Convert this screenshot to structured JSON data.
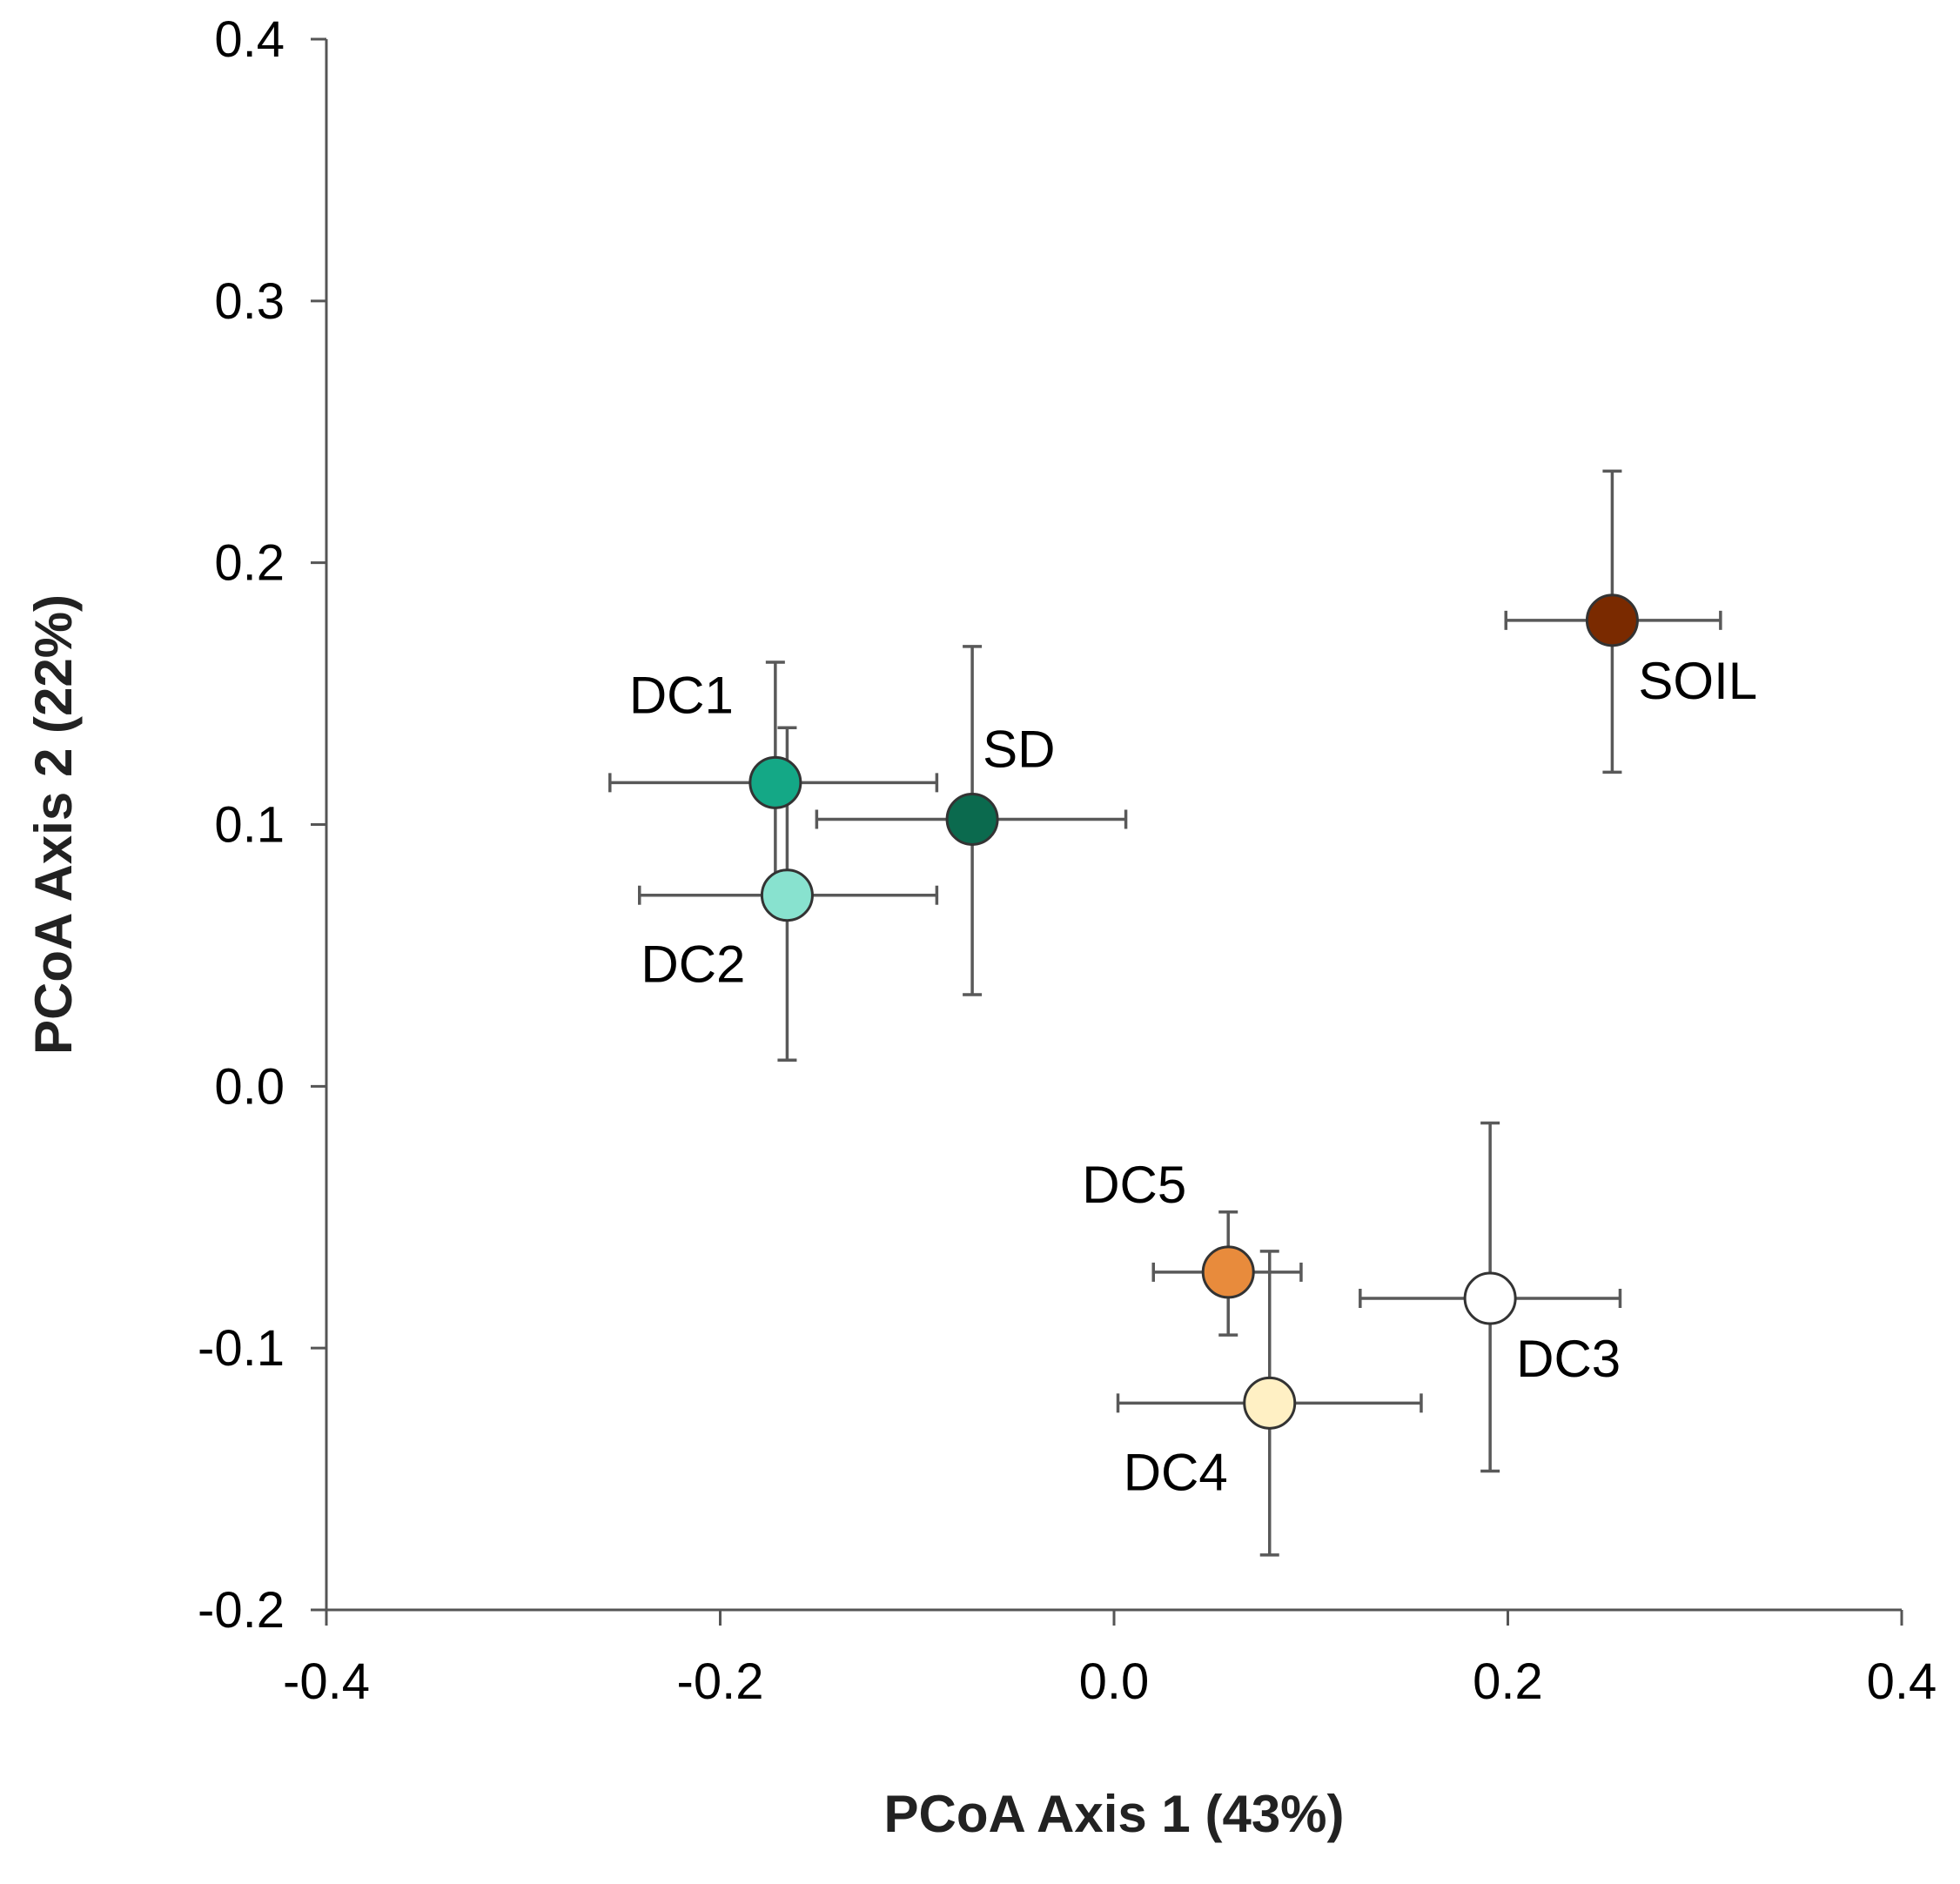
{
  "chart_data": {
    "type": "scatter",
    "title": "",
    "xlabel": "PCoA Axis 1 (43%)",
    "ylabel": "PCoA Axis 2 (22%)",
    "xlim": [
      -0.4,
      0.4
    ],
    "ylim": [
      -0.2,
      0.4
    ],
    "xticks": [
      -0.4,
      -0.2,
      0.0,
      0.2,
      0.4
    ],
    "yticks": [
      -0.2,
      -0.1,
      0.0,
      0.1,
      0.2,
      0.3,
      0.4
    ],
    "xtick_labels": [
      "-0.4",
      "-0.2",
      "0.0",
      "0.2",
      "0.4"
    ],
    "ytick_labels": [
      "-0.2",
      "-0.1",
      "0.0",
      "0.1",
      "0.2",
      "0.3",
      "0.4"
    ],
    "grid": false,
    "legend": "none",
    "points": [
      {
        "name": "DC1",
        "x": -0.172,
        "y": 0.116,
        "x_err_low": -0.256,
        "x_err_high": -0.09,
        "y_err_low": 0.073,
        "y_err_high": 0.162,
        "color": "#14A886",
        "label_position": "upper-left"
      },
      {
        "name": "DC2",
        "x": -0.166,
        "y": 0.073,
        "x_err_low": -0.241,
        "x_err_high": -0.09,
        "y_err_low": 0.01,
        "y_err_high": 0.137,
        "color": "#88E2CF",
        "label_position": "lower-left"
      },
      {
        "name": "SD",
        "x": -0.072,
        "y": 0.102,
        "x_err_low": -0.151,
        "x_err_high": 0.006,
        "y_err_low": 0.035,
        "y_err_high": 0.168,
        "color": "#0B6A4E",
        "label_position": "upper-right"
      },
      {
        "name": "SOIL",
        "x": 0.253,
        "y": 0.178,
        "x_err_low": 0.199,
        "x_err_high": 0.308,
        "y_err_low": 0.12,
        "y_err_high": 0.235,
        "color": "#7A2A00",
        "label_position": "lower-right"
      },
      {
        "name": "DC5",
        "x": 0.058,
        "y": -0.071,
        "x_err_low": 0.02,
        "x_err_high": 0.095,
        "y_err_low": -0.095,
        "y_err_high": -0.048,
        "color": "#E88B3C",
        "label_position": "upper-left"
      },
      {
        "name": "DC3",
        "x": 0.191,
        "y": -0.081,
        "x_err_low": 0.125,
        "x_err_high": 0.257,
        "y_err_low": -0.147,
        "y_err_high": -0.014,
        "color": "#FFFFFF",
        "label_position": "lower-right"
      },
      {
        "name": "DC4",
        "x": 0.079,
        "y": -0.121,
        "x_err_low": 0.002,
        "x_err_high": 0.156,
        "y_err_low": -0.179,
        "y_err_high": -0.063,
        "color": "#FFF0C4",
        "label_position": "lower-left"
      }
    ]
  }
}
